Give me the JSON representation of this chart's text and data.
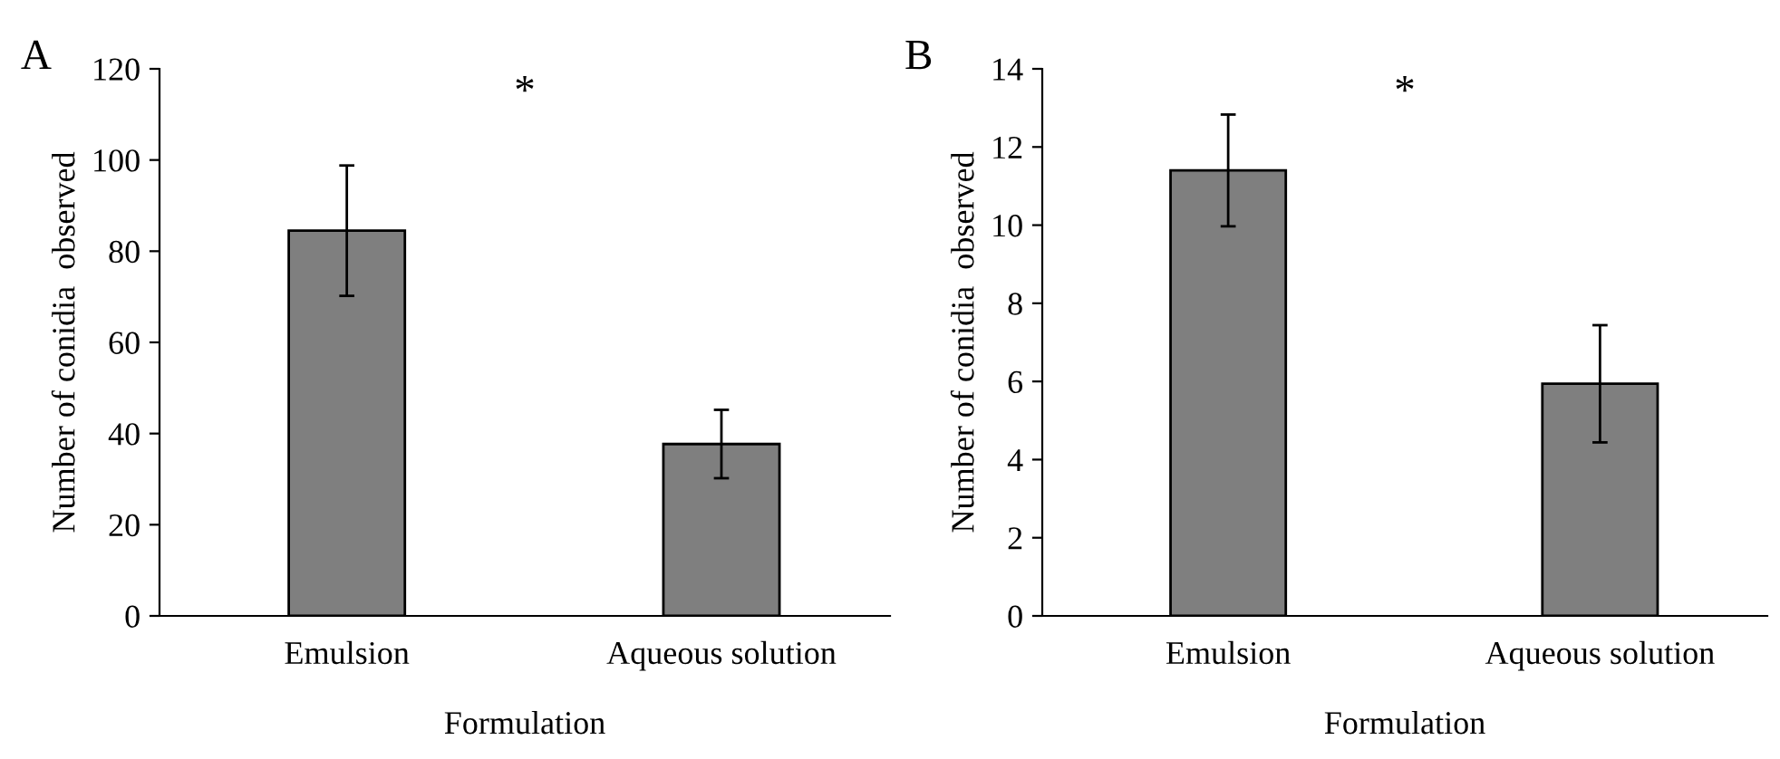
{
  "chart_data": [
    {
      "type": "bar",
      "title": "A",
      "xlabel": "Formulation",
      "ylabel": "Number of conidia  observed",
      "categories": [
        "Emulsion",
        "Aqueous solution"
      ],
      "values": [
        84.5,
        37.7
      ],
      "errors": [
        14.3,
        7.5
      ],
      "color": "#7f7f7f",
      "ylim": [
        0,
        120
      ],
      "yticks": [
        0,
        20,
        40,
        60,
        80,
        100,
        120
      ],
      "grid": false,
      "legend": false,
      "annotations": [
        "*"
      ]
    },
    {
      "type": "bar",
      "title": "B",
      "xlabel": "Formulation",
      "ylabel": "Number of conidia  observed",
      "categories": [
        "Emulsion",
        "Aqueous solution"
      ],
      "values": [
        11.4,
        5.94
      ],
      "errors": [
        1.43,
        1.5
      ],
      "color": "#7f7f7f",
      "ylim": [
        0,
        14
      ],
      "yticks": [
        0,
        2,
        4,
        6,
        8,
        10,
        12,
        14
      ],
      "grid": false,
      "legend": false,
      "annotations": [
        "*"
      ]
    }
  ]
}
